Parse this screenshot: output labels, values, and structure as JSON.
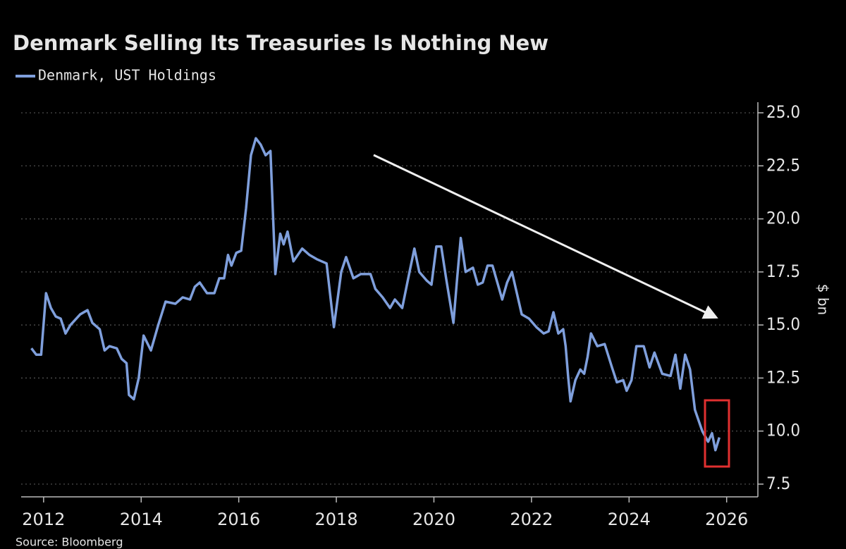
{
  "chart_data": {
    "type": "line",
    "title": "Denmark Selling Its Treasuries Is Nothing New",
    "y_label": "$ bn",
    "source": "Source: Bloomberg",
    "grid": true,
    "log_scale": false,
    "xlim": [
      2011.54,
      2026.64
    ],
    "xticks": [
      2012,
      2014,
      2016,
      2018,
      2020,
      2022,
      2024,
      2026
    ],
    "ylim": [
      6.9,
      25.5
    ],
    "yticks": [
      {
        "value": 7.5,
        "label": "7.5"
      },
      {
        "value": 10,
        "label": "10.0"
      },
      {
        "value": 12.5,
        "label": "12.5"
      },
      {
        "value": 15,
        "label": "15.0"
      },
      {
        "value": 17.5,
        "label": "17.5"
      },
      {
        "value": 20,
        "label": "20.0"
      },
      {
        "value": 22.5,
        "label": "22.5"
      },
      {
        "value": 25,
        "label": "25.0"
      }
    ],
    "x": [
      2011.75,
      2011.85,
      2011.95,
      2012.05,
      2012.15,
      2012.25,
      2012.35,
      2012.45,
      2012.55,
      2012.75,
      2012.9,
      2013.0,
      2013.15,
      2013.25,
      2013.35,
      2013.5,
      2013.6,
      2013.7,
      2013.75,
      2013.85,
      2013.95,
      2014.05,
      2014.2,
      2014.35,
      2014.5,
      2014.7,
      2014.85,
      2015.0,
      2015.1,
      2015.2,
      2015.35,
      2015.5,
      2015.6,
      2015.7,
      2015.78,
      2015.85,
      2015.95,
      2016.05,
      2016.15,
      2016.25,
      2016.35,
      2016.45,
      2016.55,
      2016.65,
      2016.75,
      2016.85,
      2016.92,
      2017.0,
      2017.12,
      2017.3,
      2017.45,
      2017.6,
      2017.8,
      2017.95,
      2018.1,
      2018.2,
      2018.35,
      2018.5,
      2018.7,
      2018.8,
      2018.95,
      2019.1,
      2019.2,
      2019.35,
      2019.5,
      2019.6,
      2019.7,
      2019.85,
      2019.95,
      2020.05,
      2020.15,
      2020.25,
      2020.4,
      2020.48,
      2020.55,
      2020.65,
      2020.8,
      2020.9,
      2021.0,
      2021.1,
      2021.2,
      2021.3,
      2021.4,
      2021.5,
      2021.6,
      2021.7,
      2021.8,
      2021.95,
      2022.1,
      2022.25,
      2022.35,
      2022.45,
      2022.55,
      2022.65,
      2022.7,
      2022.75,
      2022.8,
      2022.9,
      2023.0,
      2023.08,
      2023.15,
      2023.22,
      2023.35,
      2023.5,
      2023.65,
      2023.75,
      2023.88,
      2023.95,
      2024.05,
      2024.15,
      2024.3,
      2024.42,
      2024.52,
      2024.68,
      2024.85,
      2024.95,
      2025.05,
      2025.15,
      2025.25,
      2025.35,
      2025.5,
      2025.62,
      2025.7,
      2025.77,
      2025.85
    ],
    "series": [
      {
        "name": "Denmark, UST Holdings",
        "color": "#7f9fdc",
        "values": [
          13.9,
          13.6,
          13.6,
          16.5,
          15.8,
          15.4,
          15.3,
          14.6,
          15.0,
          15.5,
          15.7,
          15.1,
          14.8,
          13.8,
          14.0,
          13.9,
          13.4,
          13.2,
          11.7,
          11.5,
          12.5,
          14.5,
          13.8,
          15.0,
          16.1,
          16.0,
          16.3,
          16.2,
          16.8,
          17.0,
          16.5,
          16.5,
          17.2,
          17.2,
          18.3,
          17.8,
          18.4,
          18.5,
          20.5,
          23.0,
          23.8,
          23.5,
          23.0,
          23.2,
          17.4,
          19.3,
          18.8,
          19.4,
          18.0,
          18.6,
          18.3,
          18.1,
          17.9,
          14.9,
          17.5,
          18.2,
          17.2,
          17.4,
          17.4,
          16.7,
          16.3,
          15.8,
          16.2,
          15.8,
          17.5,
          18.6,
          17.5,
          17.1,
          16.9,
          18.7,
          18.7,
          17.2,
          15.1,
          17.3,
          19.1,
          17.5,
          17.7,
          16.9,
          17.0,
          17.8,
          17.8,
          17.0,
          16.2,
          17.0,
          17.5,
          16.5,
          15.5,
          15.3,
          14.9,
          14.6,
          14.7,
          15.6,
          14.6,
          14.8,
          14.0,
          12.6,
          11.4,
          12.4,
          12.9,
          12.7,
          13.5,
          14.6,
          14.0,
          14.1,
          13.0,
          12.3,
          12.4,
          11.9,
          12.4,
          14.0,
          14.0,
          13.0,
          13.7,
          12.7,
          12.6,
          13.6,
          12.0,
          13.6,
          12.9,
          11.0,
          10.0,
          9.5,
          9.9,
          9.1,
          9.7
        ]
      }
    ]
  }
}
